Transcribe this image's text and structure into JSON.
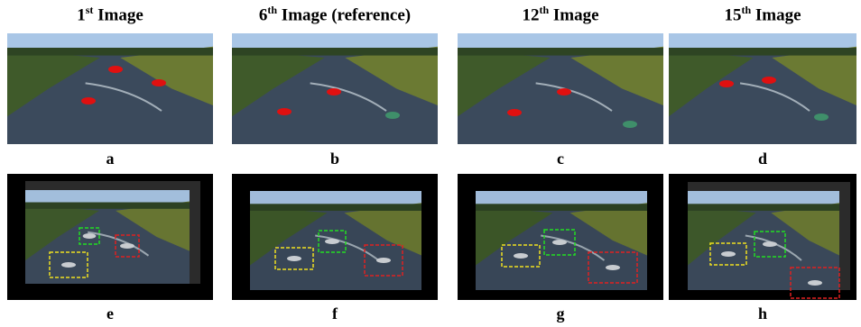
{
  "headers": [
    {
      "number": "1",
      "suffix": "st",
      "text": "Image"
    },
    {
      "number": "6",
      "suffix": "th",
      "text": "Image (reference)"
    },
    {
      "number": "12",
      "suffix": "th",
      "text": "Image"
    },
    {
      "number": "15",
      "suffix": "th",
      "text": "Image"
    }
  ],
  "labels": [
    "a",
    "b",
    "c",
    "d",
    "e",
    "f",
    "g",
    "h"
  ]
}
